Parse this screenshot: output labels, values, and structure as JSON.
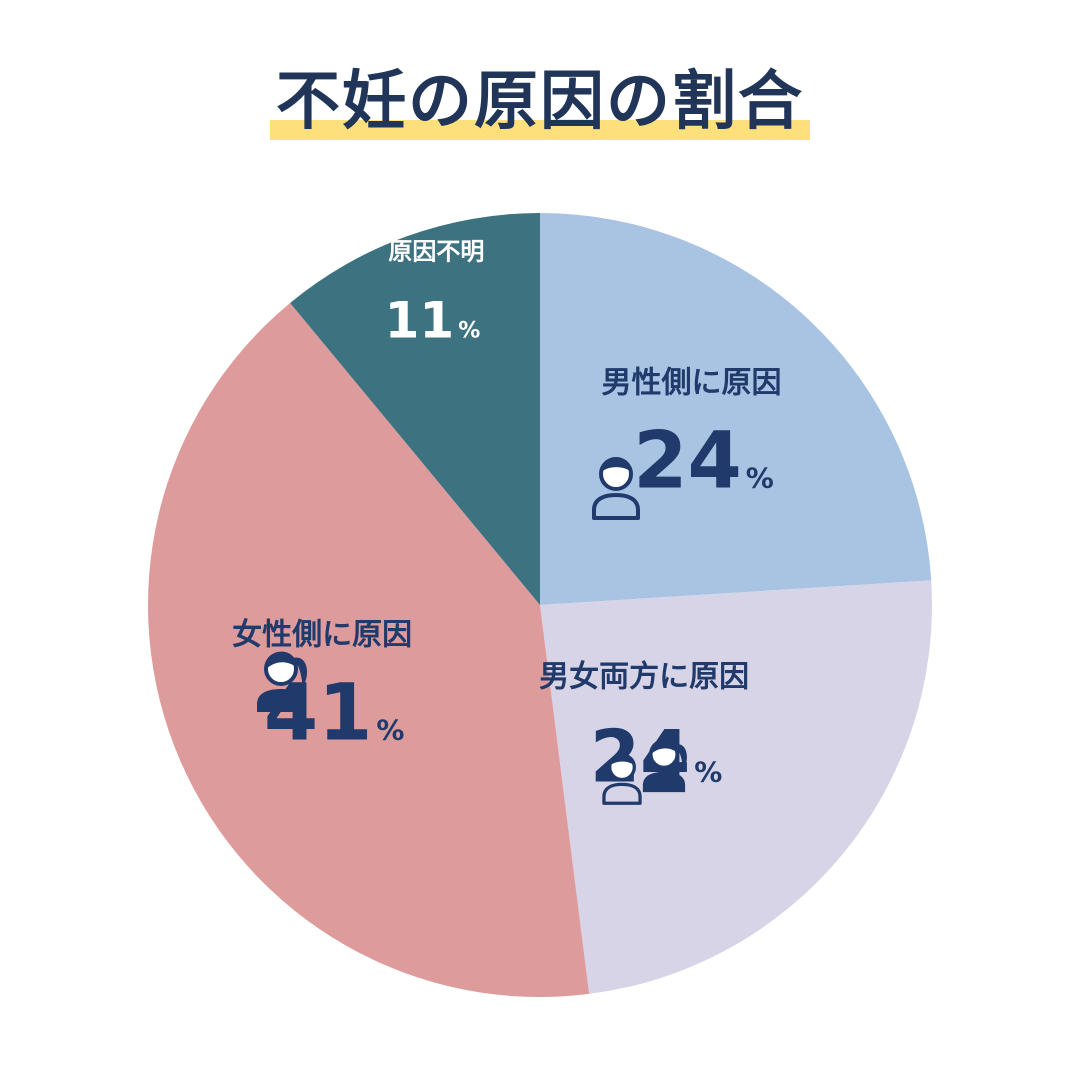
{
  "title": "不妊の原因の割合",
  "colors": {
    "title_text": "#213558",
    "title_highlight": "#fde07c",
    "label_dark": "#1f3a6b",
    "label_light": "#ffffff"
  },
  "chart_data": {
    "type": "pie",
    "title": "不妊の原因の割合",
    "start": "12 o'clock, clockwise",
    "slices": [
      {
        "label": "男性側に原因",
        "value": 24,
        "unit": "%",
        "color": "#a9c4e3",
        "icon": "male-person-icon",
        "text_color": "#1f3a6b"
      },
      {
        "label": "男女両方に原因",
        "value": 24,
        "unit": "%",
        "color": "#d8d4e8",
        "icon": "couple-icon",
        "text_color": "#1f3a6b"
      },
      {
        "label": "女性側に原因",
        "value": 41,
        "unit": "%",
        "color": "#de9b9b",
        "icon": "female-person-icon",
        "text_color": "#1f3a6b"
      },
      {
        "label": "原因不明",
        "value": 11,
        "unit": "%",
        "color": "#3d7280",
        "icon": "",
        "text_color": "#ffffff"
      }
    ]
  }
}
